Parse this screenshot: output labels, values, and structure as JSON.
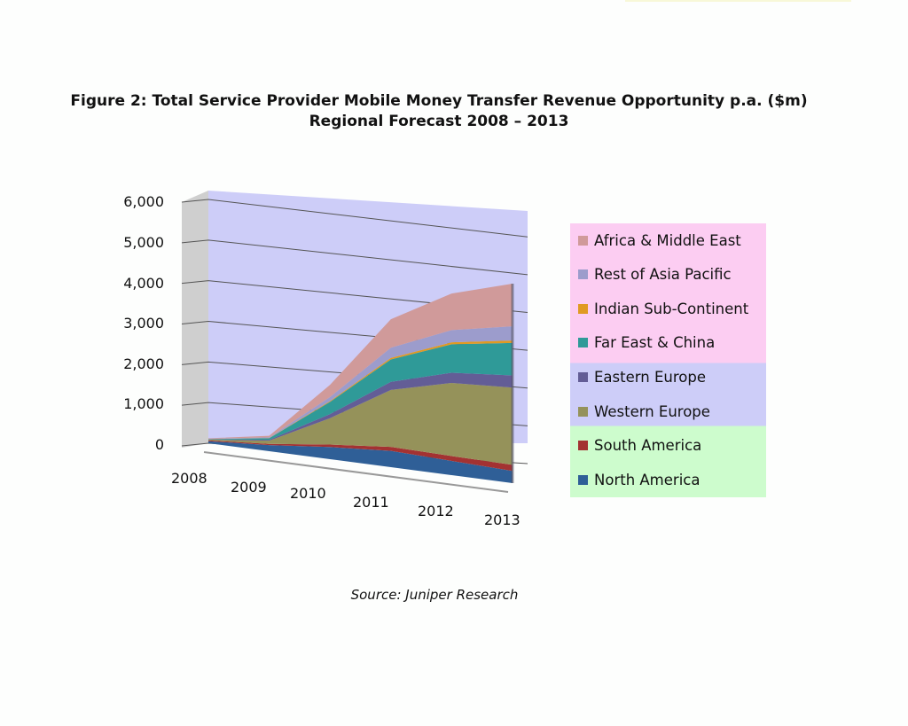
{
  "title_line1": "Figure 2: Total Service Provider Mobile Money Transfer Revenue Opportunity p.a. ($m)",
  "title_line2": "Regional Forecast 2008 – 2013",
  "source": "Source: Juniper Research",
  "chart_data": {
    "type": "area",
    "stacked": true,
    "style": "3d",
    "title": "Figure 2: Total Service Provider Mobile Money Transfer Revenue Opportunity p.a. ($m) Regional Forecast 2008 – 2013",
    "xlabel": "",
    "ylabel": "",
    "categories": [
      "2008",
      "2009",
      "2010",
      "2011",
      "2012",
      "2013"
    ],
    "ylim": [
      0,
      6000
    ],
    "yticks": [
      "0",
      "1,000",
      "2,000",
      "3,000",
      "4,000",
      "5,000",
      "6,000"
    ],
    "grid": true,
    "legend_position": "right",
    "series": [
      {
        "name": "North America",
        "color": "#2f5f97",
        "values": [
          50,
          150,
          300,
          400,
          350,
          300
        ]
      },
      {
        "name": "South America",
        "color": "#a33232",
        "values": [
          20,
          30,
          60,
          100,
          120,
          150
        ]
      },
      {
        "name": "Western Europe",
        "color": "#95925a",
        "values": [
          20,
          80,
          650,
          1400,
          1800,
          1900
        ]
      },
      {
        "name": "Eastern Europe",
        "color": "#635d96",
        "values": [
          5,
          20,
          100,
          200,
          250,
          300
        ]
      },
      {
        "name": "Far East & China",
        "color": "#2f9a98",
        "values": [
          10,
          40,
          300,
          550,
          700,
          800
        ]
      },
      {
        "name": "Indian Sub-Continent",
        "color": "#e09a22",
        "values": [
          2,
          5,
          20,
          40,
          50,
          60
        ]
      },
      {
        "name": "Rest of Asia Pacific",
        "color": "#9c9ccc",
        "values": [
          5,
          15,
          100,
          250,
          300,
          350
        ]
      },
      {
        "name": "Africa & Middle East",
        "color": "#d09a9a",
        "values": [
          10,
          40,
          300,
          700,
          900,
          1050
        ]
      }
    ]
  }
}
